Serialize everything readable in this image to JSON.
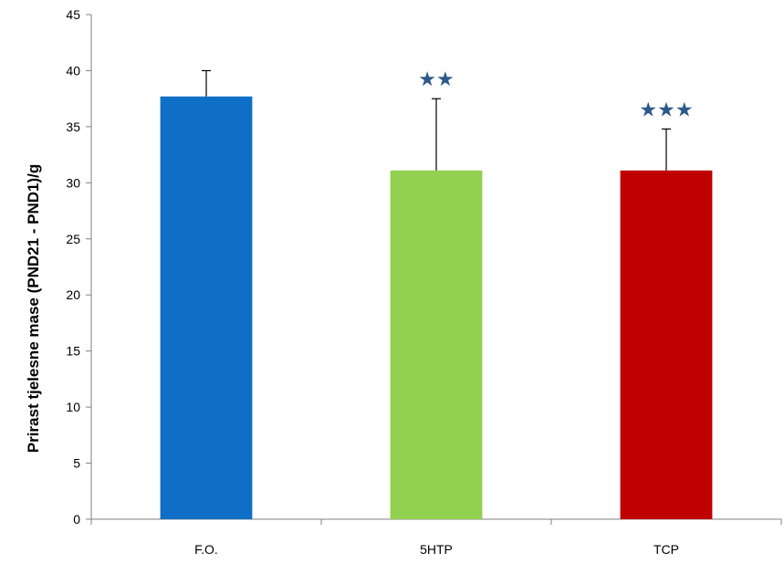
{
  "chart_data": {
    "type": "bar",
    "title": "",
    "xlabel": "",
    "ylabel": "Prirast tjelesne mase (PND21 - PND1)/g",
    "ylim": [
      0,
      45
    ],
    "yticks": [
      0,
      5,
      10,
      15,
      20,
      25,
      30,
      35,
      40,
      45
    ],
    "grid": false,
    "categories": [
      "F.O.",
      "5HTP",
      "TCP"
    ],
    "values": [
      37.7,
      31.1,
      31.1
    ],
    "error_upper": [
      40.0,
      37.5,
      34.8
    ],
    "bar_colors": [
      "#0f6fc6",
      "#92d050",
      "#c00000"
    ],
    "significance": [
      "",
      "★★",
      "★★★"
    ],
    "significance_color": "#2e5a8a"
  }
}
